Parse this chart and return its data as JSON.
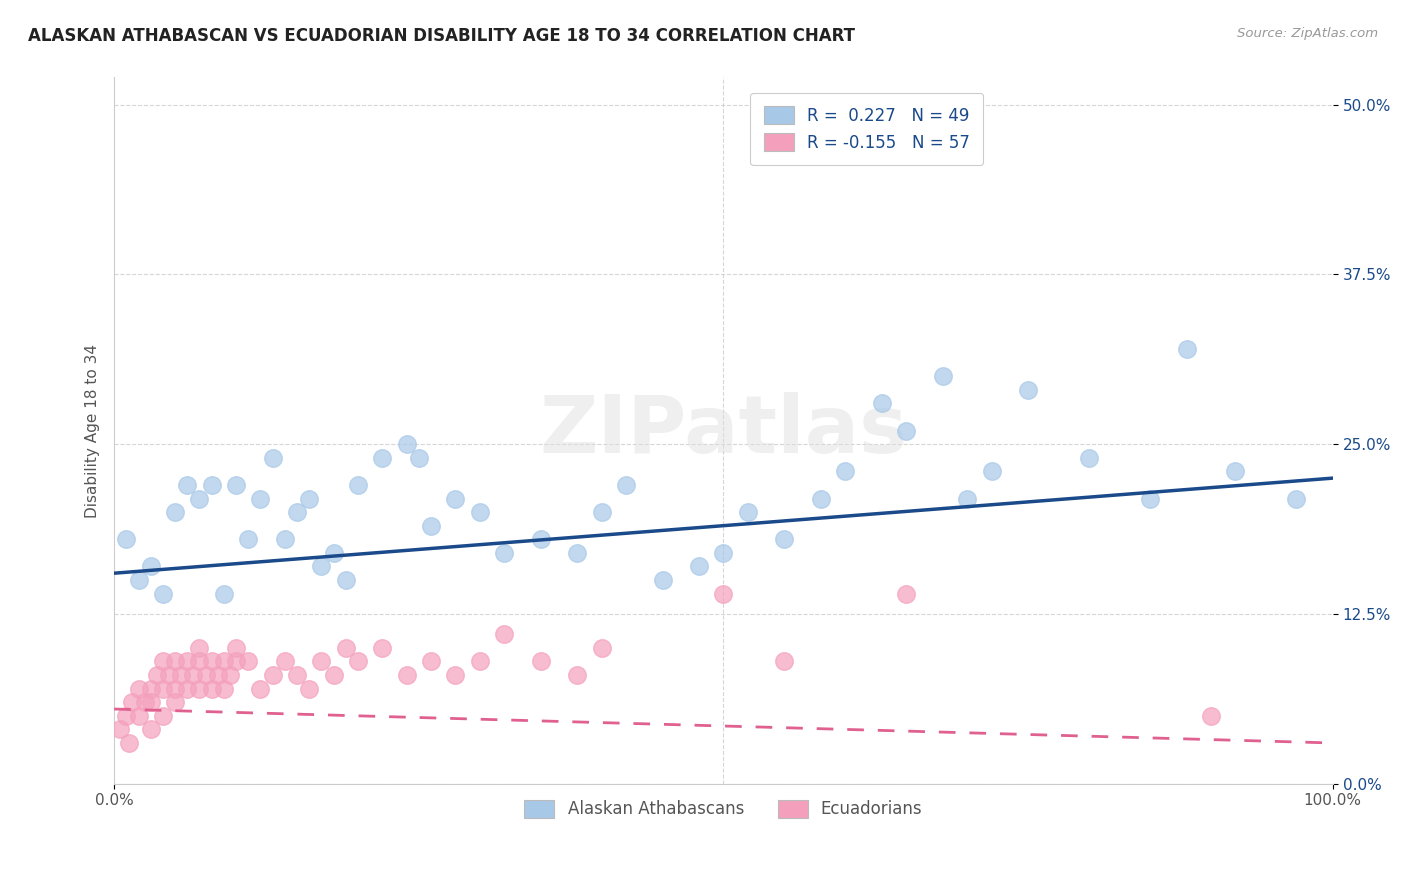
{
  "title": "ALASKAN ATHABASCAN VS ECUADORIAN DISABILITY AGE 18 TO 34 CORRELATION CHART",
  "source": "Source: ZipAtlas.com",
  "ylabel": "Disability Age 18 to 34",
  "xlim": [
    0,
    100
  ],
  "ylim": [
    0,
    52
  ],
  "ytick_vals": [
    0,
    12.5,
    25.0,
    37.5,
    50.0
  ],
  "xtick_vals": [
    0,
    100
  ],
  "R_blue": 0.227,
  "N_blue": 49,
  "R_pink": -0.155,
  "N_pink": 57,
  "legend_labels": [
    "Alaskan Athabascans",
    "Ecuadorians"
  ],
  "blue_color": "#A8C8E8",
  "pink_color": "#F4A0BC",
  "blue_line_color": "#1A4A8A",
  "pink_line_color": "#E06090",
  "watermark_text": "ZIPatlas",
  "blue_scatter_x": [
    1,
    2,
    3,
    4,
    5,
    6,
    7,
    8,
    9,
    10,
    11,
    12,
    13,
    14,
    15,
    16,
    17,
    18,
    19,
    20,
    22,
    24,
    25,
    26,
    28,
    30,
    32,
    35,
    38,
    40,
    42,
    45,
    48,
    50,
    52,
    55,
    58,
    60,
    63,
    65,
    68,
    70,
    72,
    75,
    80,
    85,
    88,
    92,
    97
  ],
  "blue_scatter_y": [
    18,
    15,
    16,
    14,
    20,
    22,
    21,
    22,
    14,
    22,
    18,
    21,
    24,
    18,
    20,
    21,
    16,
    17,
    15,
    22,
    24,
    25,
    24,
    19,
    21,
    20,
    17,
    18,
    17,
    20,
    22,
    15,
    16,
    17,
    20,
    18,
    21,
    23,
    28,
    26,
    30,
    21,
    23,
    29,
    24,
    21,
    32,
    23,
    21
  ],
  "pink_scatter_x": [
    0.5,
    1,
    1.2,
    1.5,
    2,
    2,
    2.5,
    3,
    3,
    3,
    3.5,
    4,
    4,
    4,
    4.5,
    5,
    5,
    5,
    5.5,
    6,
    6,
    6.5,
    7,
    7,
    7,
    7.5,
    8,
    8,
    8.5,
    9,
    9,
    9.5,
    10,
    10,
    11,
    12,
    13,
    14,
    15,
    16,
    17,
    18,
    19,
    20,
    22,
    24,
    26,
    28,
    30,
    32,
    35,
    38,
    40,
    50,
    55,
    65,
    90
  ],
  "pink_scatter_y": [
    4,
    5,
    3,
    6,
    5,
    7,
    6,
    4,
    6,
    7,
    8,
    5,
    7,
    9,
    8,
    7,
    9,
    6,
    8,
    7,
    9,
    8,
    10,
    7,
    9,
    8,
    7,
    9,
    8,
    9,
    7,
    8,
    9,
    10,
    9,
    7,
    8,
    9,
    8,
    7,
    9,
    8,
    10,
    9,
    10,
    8,
    9,
    8,
    9,
    11,
    9,
    8,
    10,
    14,
    9,
    14,
    5
  ],
  "blue_line_x0": 0,
  "blue_line_x1": 100,
  "blue_line_y0": 15.5,
  "blue_line_y1": 22.5,
  "pink_line_x0": 0,
  "pink_line_x1": 100,
  "pink_line_y0": 5.5,
  "pink_line_y1": 3.0
}
